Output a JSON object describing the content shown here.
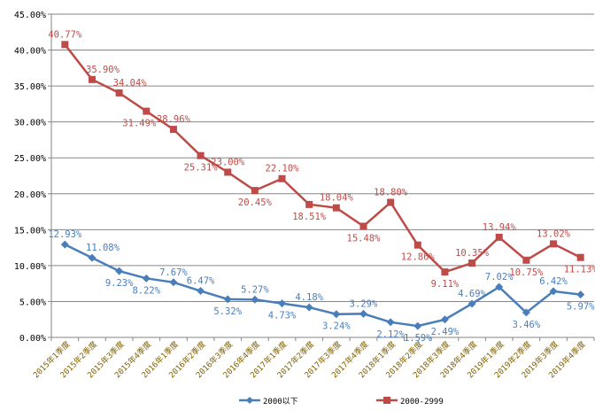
{
  "chart_data": {
    "type": "line",
    "title": "",
    "xlabel": "",
    "ylabel": "",
    "ylim": [
      0,
      45
    ],
    "yticks": [
      "0.00%",
      "5.00%",
      "10.00%",
      "15.00%",
      "20.00%",
      "25.00%",
      "30.00%",
      "35.00%",
      "40.00%",
      "45.00%"
    ],
    "grid": true,
    "legend": "bottom",
    "categories": [
      "2015年1季度",
      "2015年2季度",
      "2015年3季度",
      "2015年4季度",
      "2016年1季度",
      "2016年2季度",
      "2016年3季度",
      "2016年4季度",
      "2017年1季度",
      "2017年2季度",
      "2017年3季度",
      "2017年4季度",
      "2018年1季度",
      "2018年2季度",
      "2018年3季度",
      "2018年4季度",
      "2019年1季度",
      "2019年2季度",
      "2019年3季度",
      "2019年4季度"
    ],
    "series": [
      {
        "name": "2000以下",
        "color": "#4a7ebb",
        "marker": "diamond",
        "values": [
          12.93,
          11.08,
          9.23,
          8.22,
          7.67,
          6.47,
          5.32,
          5.27,
          4.73,
          4.18,
          3.24,
          3.29,
          2.12,
          1.59,
          2.49,
          4.69,
          7.02,
          3.46,
          6.42,
          5.97
        ]
      },
      {
        "name": "2000-2999",
        "color": "#be4b48",
        "marker": "square",
        "values": [
          40.77,
          35.9,
          34.04,
          31.49,
          28.96,
          25.31,
          23.0,
          20.45,
          22.1,
          18.51,
          18.04,
          15.48,
          18.8,
          12.86,
          9.11,
          10.35,
          13.94,
          10.75,
          13.02,
          11.13
        ]
      }
    ]
  }
}
